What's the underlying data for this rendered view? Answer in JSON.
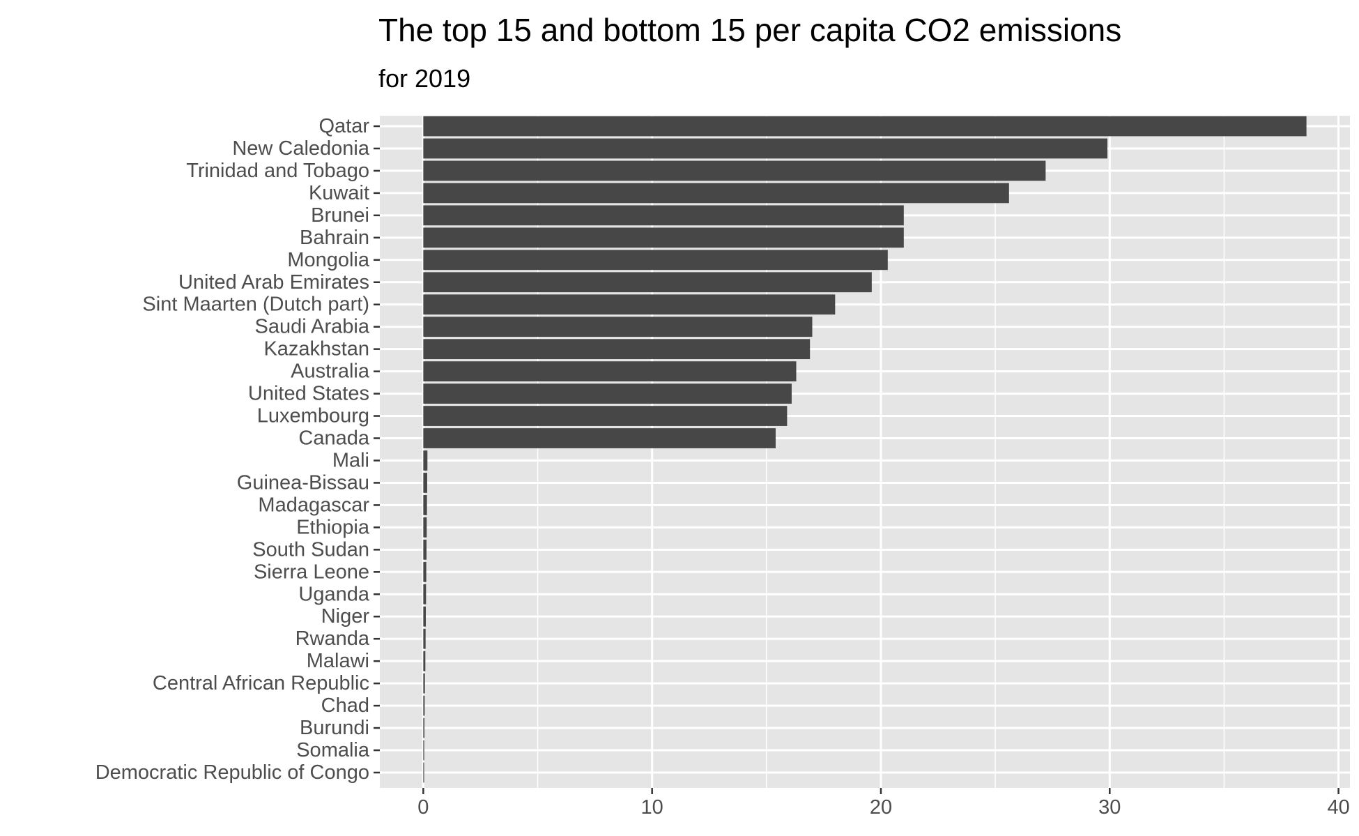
{
  "chart_data": {
    "type": "bar",
    "orientation": "horizontal",
    "title": "The top 15 and bottom 15 per capita CO2 emissions",
    "subtitle": "for 2019",
    "xlabel": "",
    "ylabel": "",
    "xlim": [
      -1.9,
      40.5
    ],
    "x_ticks": [
      0,
      10,
      20,
      30,
      40
    ],
    "grid": true,
    "legend": "none",
    "bar_color": "#474747",
    "panel_color": "#e5e5e5",
    "grid_color": "#ffffff",
    "categories": [
      "Qatar",
      "New Caledonia",
      "Trinidad and Tobago",
      "Kuwait",
      "Brunei",
      "Bahrain",
      "Mongolia",
      "United Arab Emirates",
      "Sint Maarten (Dutch part)",
      "Saudi Arabia",
      "Kazakhstan",
      "Australia",
      "United States",
      "Luxembourg",
      "Canada",
      "Mali",
      "Guinea-Bissau",
      "Madagascar",
      "Ethiopia",
      "South Sudan",
      "Sierra Leone",
      "Uganda",
      "Niger",
      "Rwanda",
      "Malawi",
      "Central African Republic",
      "Chad",
      "Burundi",
      "Somalia",
      "Democratic Republic of Congo"
    ],
    "values": [
      38.6,
      29.9,
      27.2,
      25.6,
      21.0,
      21.0,
      20.3,
      19.6,
      18.0,
      17.0,
      16.9,
      16.3,
      16.1,
      15.9,
      15.4,
      0.18,
      0.17,
      0.16,
      0.15,
      0.14,
      0.13,
      0.12,
      0.11,
      0.1,
      0.09,
      0.07,
      0.06,
      0.05,
      0.04,
      0.03
    ]
  }
}
